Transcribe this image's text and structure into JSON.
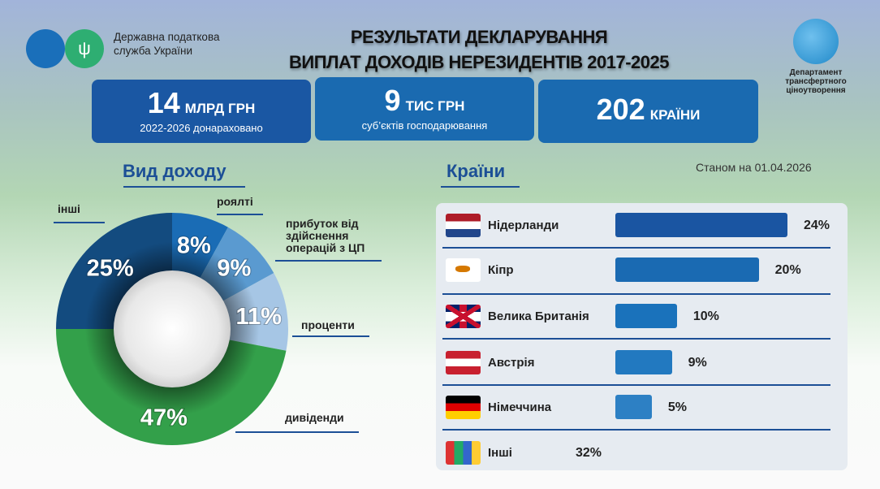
{
  "header": {
    "org_name": "Державна податкова служба України",
    "title_line1": "РЕЗУЛЬТАТИ ДЕКЛАРУВАННЯ",
    "title_line2": "ВИПЛАТ ДОХОДІВ НЕРЕЗИДЕНТІВ 2017-2025",
    "dept_name": "Департамент трансфертного ціноутворення"
  },
  "cards": [
    {
      "value": "14",
      "unit": "МЛРД ГРН",
      "sub": "2022-2026 донараховано",
      "color": "#1a57a3"
    },
    {
      "value": "9",
      "unit": "ТИС ГРН",
      "sub": "суб’єктів господарювання",
      "color": "#1a6ab0"
    },
    {
      "value": "202",
      "unit": "КРАЇНИ",
      "sub": "",
      "color": "#1a6ab0"
    }
  ],
  "as_of": "Станом на 01.04.2026",
  "chart_data": [
    {
      "type": "pie",
      "title": "Вид доходу",
      "donut": true,
      "categories": [
        "роялті",
        "прибуток від здійснення операцій з ЦП",
        "проценти",
        "дивіденди",
        "інші"
      ],
      "values": [
        8,
        9,
        11,
        47,
        25
      ],
      "labels": [
        "8%",
        "9%",
        "11%",
        "47%",
        "25%"
      ],
      "colors": [
        "#1a6cb5",
        "#5a9ad0",
        "#a6c6e5",
        "#33a04a",
        "#134b7f"
      ]
    },
    {
      "type": "bar",
      "title": "Країни",
      "orientation": "horizontal",
      "categories": [
        "Нідерланди",
        "Кіпр",
        "Велика Британія",
        "Австрія",
        "Німеччина",
        "Інші"
      ],
      "values": [
        24,
        20,
        10,
        9,
        5,
        32
      ],
      "labels": [
        "24%",
        "20%",
        "10%",
        "9%",
        "5%",
        "32%"
      ],
      "colors": [
        "#1a55a2",
        "#1a6ab2",
        "#1a72bb",
        "#2279c0",
        "#2d80c4",
        ""
      ]
    }
  ]
}
